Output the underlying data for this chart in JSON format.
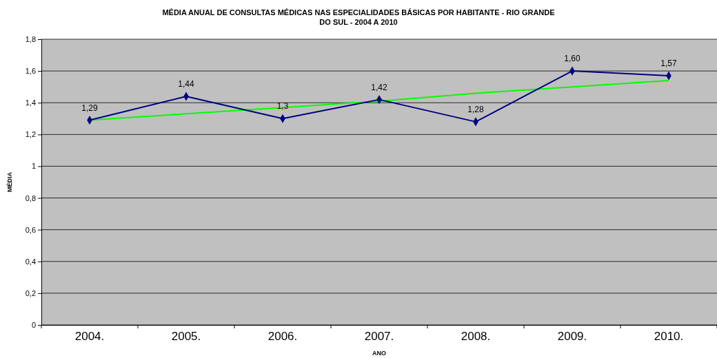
{
  "chart_data": {
    "type": "line",
    "title": "MÉDIA ANUAL DE CONSULTAS MÉDICAS NAS ESPECIALIDADES BÁSICAS POR HABITANTE - RIO GRANDE DO SUL - 2004 A 2010",
    "xlabel": "ANO",
    "ylabel": "MÉDIA",
    "categories": [
      "2004.",
      "2005.",
      "2006.",
      "2007.",
      "2008.",
      "2009.",
      "2010."
    ],
    "series": [
      {
        "color": "#000080",
        "values": [
          1.29,
          1.44,
          1.3,
          1.42,
          1.28,
          1.6,
          1.57
        ],
        "value_labels": [
          "1,29",
          "1,44",
          "1,3",
          "1,42",
          "1,28",
          "1,60",
          "1,57"
        ],
        "marker": "diamond"
      },
      {
        "type": "line",
        "color": "#00ff00",
        "values": [
          1.29,
          1.33,
          1.37,
          1.41,
          1.46,
          1.5,
          1.54
        ],
        "marker": "none"
      }
    ],
    "ylim": [
      0,
      1.8
    ],
    "yticks": [
      0,
      {
        "value": 0.2,
        "label": "0,2"
      },
      {
        "value": 0.4,
        "label": "0,4"
      },
      {
        "value": 0.6,
        "label": "0,6"
      },
      {
        "value": 0.8,
        "label": "0,8"
      },
      1,
      {
        "value": 1.2,
        "label": "1,2"
      },
      {
        "value": 1.4,
        "label": "1,4"
      },
      {
        "value": 1.6,
        "label": "1,6"
      },
      {
        "value": 1.8,
        "label": "1,8"
      }
    ],
    "grid": "y",
    "line_style": "solid"
  }
}
